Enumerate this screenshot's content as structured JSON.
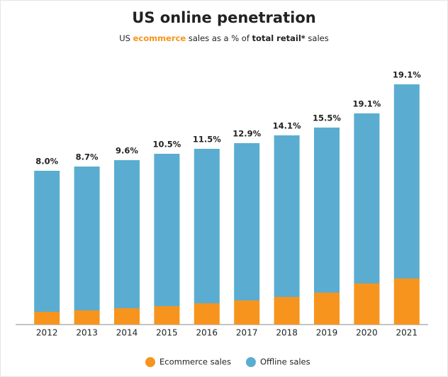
{
  "chart_data": {
    "type": "stacked-bar",
    "title": "US online penetration",
    "subtitle": [
      "US ",
      "ecommerce",
      " sales as a % of ",
      "total retail*",
      " sales"
    ],
    "categories": [
      "2012",
      "2013",
      "2014",
      "2015",
      "2016",
      "2017",
      "2018",
      "2019",
      "2020",
      "2021"
    ],
    "series": [
      {
        "name": "Ecommerce sales",
        "color": "#f7941d",
        "values": [
          18,
          20,
          23,
          26,
          30,
          34,
          39,
          45,
          58,
          65
        ]
      },
      {
        "name": "Offline sales",
        "color": "#5aadd0",
        "values": [
          199,
          203,
          209,
          215,
          218,
          222,
          228,
          233,
          240,
          274
        ]
      }
    ],
    "values": [
      8.0,
      8.7,
      9.6,
      10.5,
      11.5,
      12.9,
      14.1,
      15.5,
      19.1,
      19.1
    ],
    "value_labels": [
      "8.0%",
      "8.7%",
      "9.6%",
      "10.5%",
      "11.5%",
      "12.9%",
      "14.1%",
      "15.5%",
      "19.1%",
      "19.1%"
    ],
    "ylim": [
      0,
      350
    ],
    "legend": "bottom"
  }
}
